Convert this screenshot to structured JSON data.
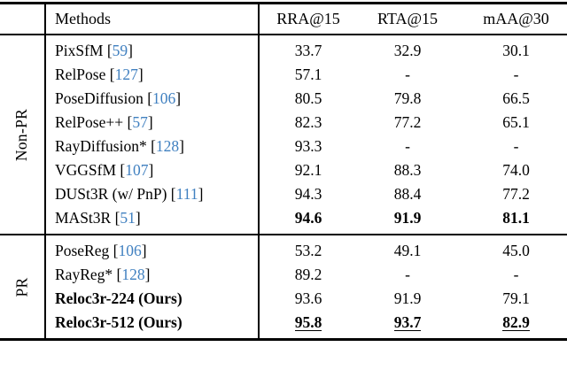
{
  "table": {
    "header": {
      "methods_label": "Methods",
      "columns": [
        "RRA@15",
        "RTA@15",
        "mAA@30"
      ]
    },
    "sections": [
      {
        "label": "Non-PR",
        "rows": [
          {
            "method": "PixSfM",
            "cite": "59",
            "method_bold": false,
            "value_style": "normal",
            "values": [
              "33.7",
              "32.9",
              "30.1"
            ]
          },
          {
            "method": "RelPose",
            "cite": "127",
            "method_bold": false,
            "value_style": "normal",
            "values": [
              "57.1",
              "-",
              "-"
            ]
          },
          {
            "method": "PoseDiffusion",
            "cite": "106",
            "method_bold": false,
            "value_style": "normal",
            "values": [
              "80.5",
              "79.8",
              "66.5"
            ]
          },
          {
            "method": "RelPose++",
            "cite": "57",
            "method_bold": false,
            "value_style": "normal",
            "values": [
              "82.3",
              "77.2",
              "65.1"
            ]
          },
          {
            "method": "RayDiffusion*",
            "cite": "128",
            "method_bold": false,
            "value_style": "normal",
            "values": [
              "93.3",
              "-",
              "-"
            ]
          },
          {
            "method": "VGGSfM",
            "cite": "107",
            "method_bold": false,
            "value_style": "normal",
            "values": [
              "92.1",
              "88.3",
              "74.0"
            ]
          },
          {
            "method": "DUSt3R (w/ PnP)",
            "cite": "111",
            "method_bold": false,
            "value_style": "normal",
            "values": [
              "94.3",
              "88.4",
              "77.2"
            ]
          },
          {
            "method": "MASt3R",
            "cite": "51",
            "method_bold": false,
            "value_style": "bold",
            "values": [
              "94.6",
              "91.9",
              "81.1"
            ]
          }
        ]
      },
      {
        "label": "PR",
        "rows": [
          {
            "method": "PoseReg",
            "cite": "106",
            "method_bold": false,
            "value_style": "normal",
            "values": [
              "53.2",
              "49.1",
              "45.0"
            ]
          },
          {
            "method": "RayReg*",
            "cite": "128",
            "method_bold": false,
            "value_style": "normal",
            "values": [
              "89.2",
              "-",
              "-"
            ]
          },
          {
            "method": "Reloc3r-224 (Ours)",
            "cite": null,
            "method_bold": true,
            "value_style": "normal",
            "values": [
              "93.6",
              "91.9",
              "79.1"
            ]
          },
          {
            "method": "Reloc3r-512 (Ours)",
            "cite": null,
            "method_bold": true,
            "value_style": "bold-underline",
            "values": [
              "95.8",
              "93.7",
              "82.9"
            ]
          }
        ]
      }
    ],
    "colors": {
      "citation": "#4080c0",
      "text": "#000000",
      "rule": "#000000"
    }
  }
}
